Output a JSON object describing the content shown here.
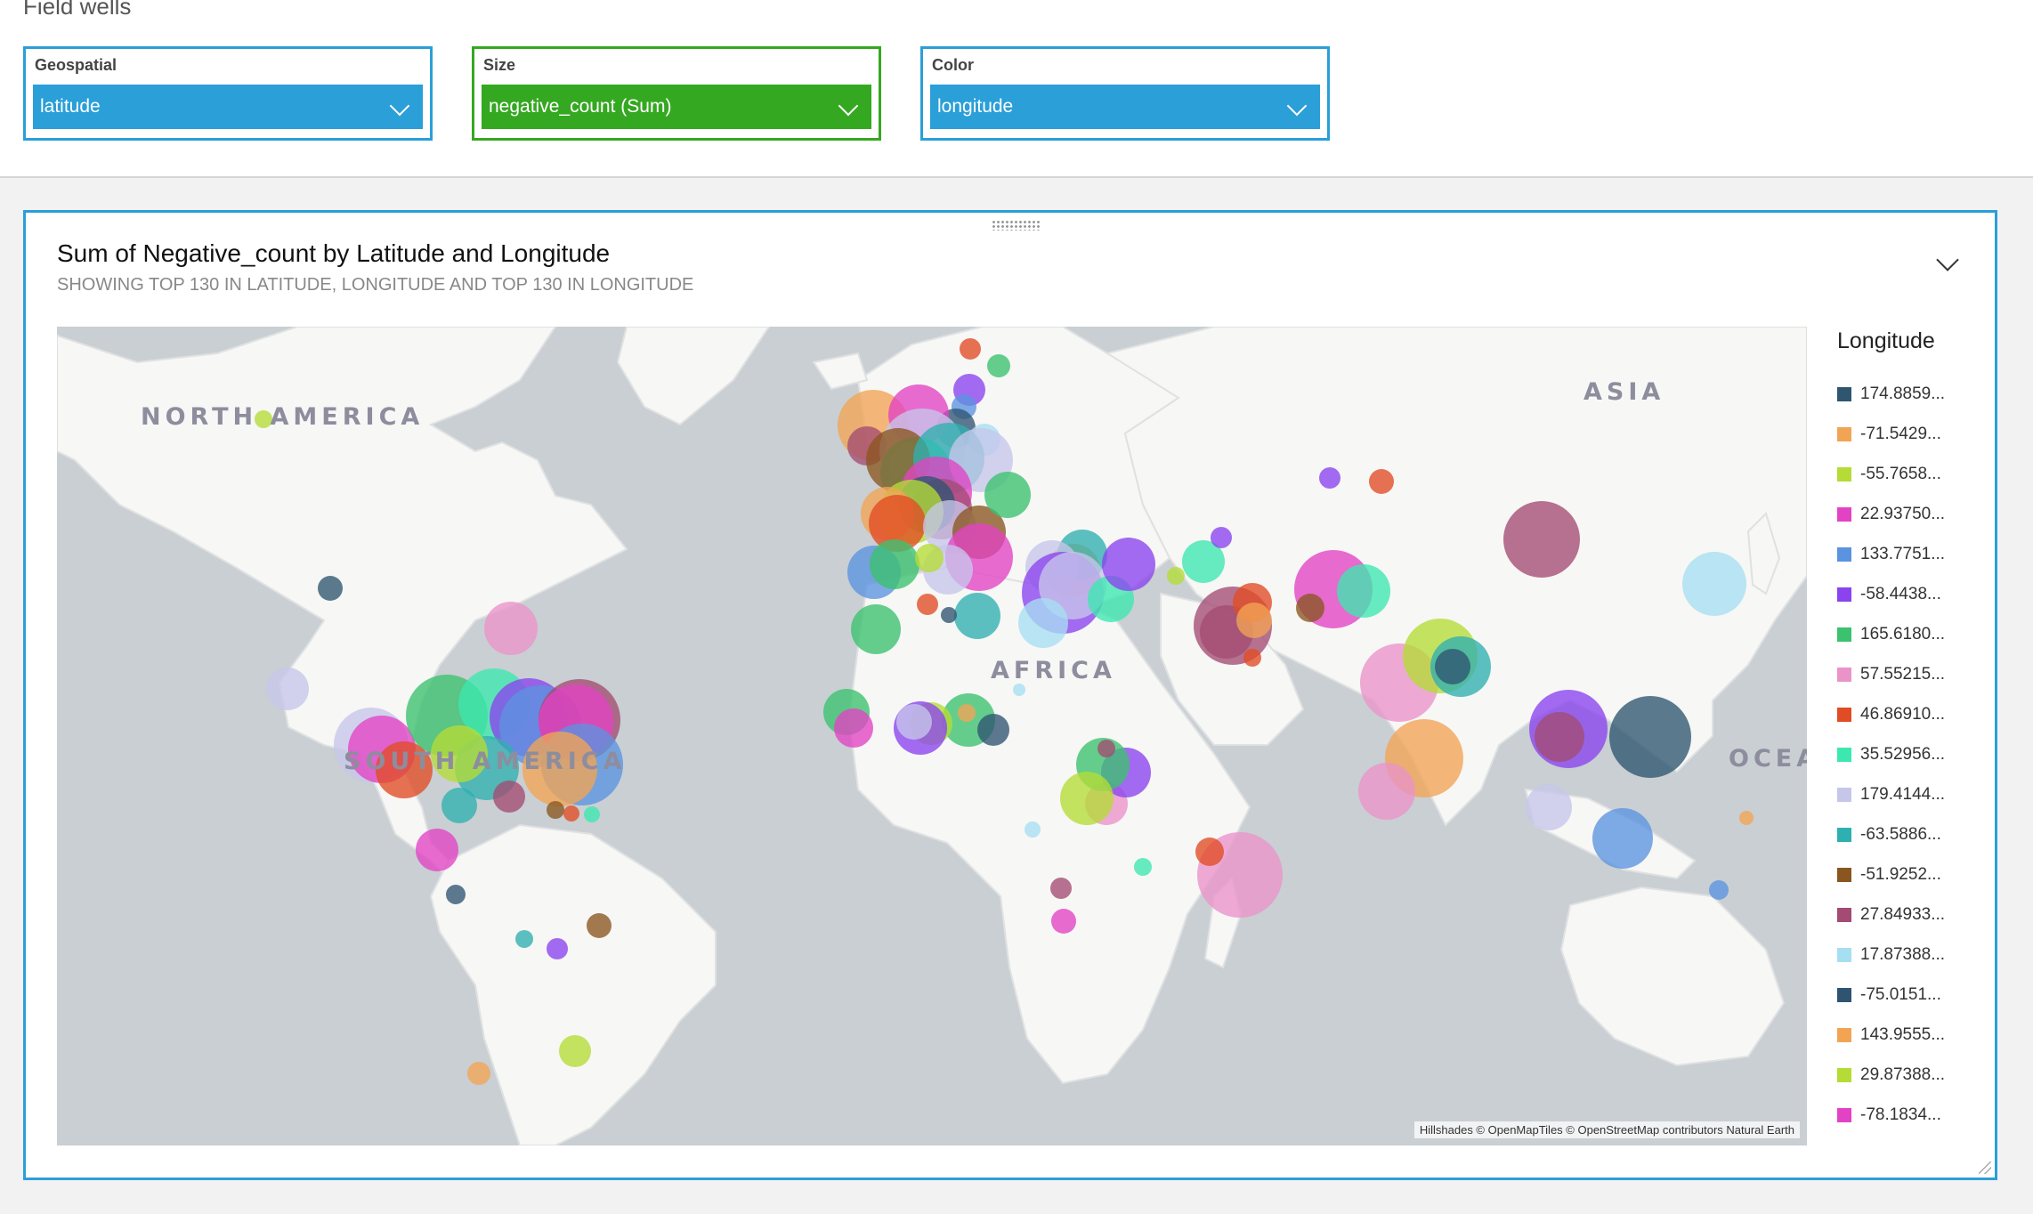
{
  "field_wells": {
    "title": "Field wells",
    "geospatial": {
      "label": "Geospatial",
      "value": "latitude"
    },
    "size": {
      "label": "Size",
      "value": "negative_count (Sum)"
    },
    "color": {
      "label": "Color",
      "value": "longitude"
    }
  },
  "visual": {
    "title": "Sum of Negative_count by Latitude and Longitude",
    "subtitle": "SHOWING TOP 130 IN LATITUDE, LONGITUDE AND TOP 130 IN LONGITUDE",
    "menu_icon": "chevron-down-icon"
  },
  "map": {
    "labels": {
      "north_america": "NORTH AMERICA",
      "south_america": "SOUTH AMERICA",
      "africa": "AFRICA",
      "asia": "ASIA",
      "ocean": "OCEAN"
    },
    "attribution": "Hillshades © OpenMapTiles © OpenStreetMap contributors Natural Earth"
  },
  "legend": {
    "title": "Longitude",
    "items": [
      {
        "label": "174.8859...",
        "color": "#2e566f"
      },
      {
        "label": "-71.5429...",
        "color": "#f2a455"
      },
      {
        "label": "-55.7658...",
        "color": "#b5dc36"
      },
      {
        "label": "22.93750...",
        "color": "#e342c4"
      },
      {
        "label": "133.7751...",
        "color": "#5b93e0"
      },
      {
        "label": "-58.4438...",
        "color": "#8a43ee"
      },
      {
        "label": "165.6180...",
        "color": "#3bc26e"
      },
      {
        "label": "57.55215...",
        "color": "#ea93c9"
      },
      {
        "label": "46.86910...",
        "color": "#e24c24"
      },
      {
        "label": "35.52956...",
        "color": "#3ce8b0"
      },
      {
        "label": "179.4144...",
        "color": "#c6c6ea"
      },
      {
        "label": "-63.5886...",
        "color": "#2fb0b0"
      },
      {
        "label": "-51.9252...",
        "color": "#8a5620"
      },
      {
        "label": "27.84933...",
        "color": "#a34b72"
      },
      {
        "label": "17.87388...",
        "color": "#a6dff2"
      },
      {
        "label": "-75.0151...",
        "color": "#2f5472"
      },
      {
        "label": "143.9555...",
        "color": "#f2a455"
      },
      {
        "label": "29.87388...",
        "color": "#b5dc36"
      },
      {
        "label": "-78.1834...",
        "color": "#e342c4"
      }
    ]
  }
}
